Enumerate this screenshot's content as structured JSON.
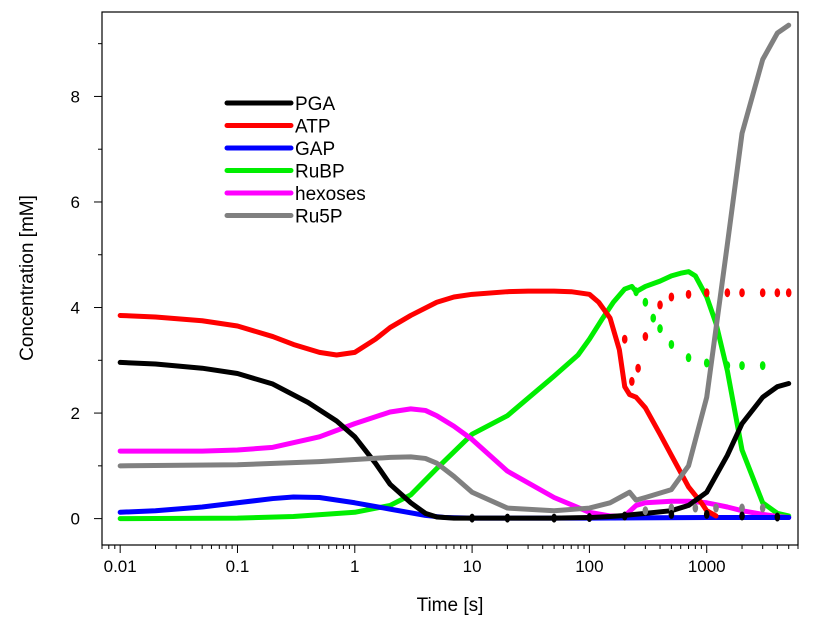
{
  "chart_data": {
    "type": "line",
    "title": "",
    "xlabel": "Time [s]",
    "ylabel": "Concentration [mM]",
    "xscale": "log",
    "xlim": [
      0.007,
      6000
    ],
    "ylim": [
      -0.5,
      9.6
    ],
    "x_ticks": [
      0.01,
      0.1,
      1,
      10,
      100,
      1000
    ],
    "x_tick_labels": [
      "0.01",
      "0.1",
      "1",
      "10",
      "100",
      "1000"
    ],
    "y_ticks": [
      0,
      2,
      4,
      6,
      8
    ],
    "y_tick_labels": [
      "0",
      "2",
      "4",
      "6",
      "8"
    ],
    "grid": false,
    "legend_position": "top-left",
    "series": [
      {
        "name": "PGA",
        "color": "#000000",
        "x": [
          0.01,
          0.02,
          0.05,
          0.1,
          0.2,
          0.4,
          0.7,
          1,
          1.5,
          2,
          3,
          4,
          5,
          7,
          10,
          20,
          50,
          100,
          150,
          200,
          300,
          500,
          700,
          1000,
          1500,
          2000,
          3000,
          4000,
          5000
        ],
        "y": [
          2.96,
          2.93,
          2.85,
          2.75,
          2.55,
          2.2,
          1.85,
          1.55,
          1.05,
          0.65,
          0.3,
          0.1,
          0.03,
          0.01,
          0.01,
          0.01,
          0.01,
          0.02,
          0.04,
          0.06,
          0.1,
          0.15,
          0.25,
          0.5,
          1.2,
          1.8,
          2.3,
          2.5,
          2.56
        ]
      },
      {
        "name": "ATP",
        "color": "#ff0000",
        "x": [
          0.01,
          0.02,
          0.05,
          0.1,
          0.2,
          0.3,
          0.5,
          0.7,
          1,
          1.5,
          2,
          3,
          5,
          7,
          10,
          20,
          30,
          50,
          70,
          100,
          120,
          150,
          180,
          200,
          220,
          250,
          300,
          400,
          500,
          700,
          900,
          1000,
          1200
        ],
        "y": [
          3.85,
          3.82,
          3.75,
          3.65,
          3.45,
          3.3,
          3.15,
          3.1,
          3.15,
          3.4,
          3.62,
          3.85,
          4.1,
          4.2,
          4.25,
          4.3,
          4.31,
          4.31,
          4.3,
          4.25,
          4.1,
          3.8,
          3.2,
          2.5,
          2.35,
          2.3,
          2.1,
          1.6,
          1.2,
          0.6,
          0.3,
          0.15,
          0.05
        ]
      },
      {
        "name": "GAP",
        "color": "#0000ff",
        "x": [
          0.01,
          0.02,
          0.05,
          0.1,
          0.2,
          0.3,
          0.5,
          1,
          2,
          4,
          6,
          10,
          100,
          1000,
          5000
        ],
        "y": [
          0.12,
          0.15,
          0.22,
          0.3,
          0.38,
          0.41,
          0.4,
          0.3,
          0.18,
          0.06,
          0.02,
          0.01,
          0.01,
          0.02,
          0.02
        ]
      },
      {
        "name": "RuBP",
        "color": "#00ee00",
        "x": [
          0.01,
          0.1,
          0.3,
          1,
          2,
          3,
          5,
          10,
          20,
          50,
          80,
          100,
          130,
          160,
          200,
          230,
          250,
          300,
          400,
          500,
          600,
          700,
          800,
          1000,
          1200,
          1500,
          2000,
          3000,
          4000,
          5000
        ],
        "y": [
          0,
          0.01,
          0.04,
          0.12,
          0.25,
          0.45,
          0.95,
          1.6,
          1.95,
          2.7,
          3.1,
          3.4,
          3.8,
          4.1,
          4.35,
          4.4,
          4.3,
          4.4,
          4.5,
          4.6,
          4.65,
          4.68,
          4.6,
          4.2,
          3.7,
          2.8,
          1.3,
          0.3,
          0.1,
          0.05
        ]
      },
      {
        "name": "hexoses",
        "color": "#ff00ff",
        "x": [
          0.01,
          0.05,
          0.1,
          0.2,
          0.5,
          1,
          2,
          3,
          4,
          5,
          7,
          10,
          20,
          50,
          100,
          150,
          200,
          250,
          300,
          500,
          700,
          1000,
          1500,
          2000,
          3000,
          4000,
          5000
        ],
        "y": [
          1.28,
          1.28,
          1.3,
          1.35,
          1.55,
          1.8,
          2.02,
          2.08,
          2.05,
          1.95,
          1.75,
          1.5,
          0.9,
          0.4,
          0.12,
          0.05,
          0.05,
          0.25,
          0.3,
          0.33,
          0.33,
          0.3,
          0.22,
          0.15,
          0.08,
          0.04,
          0.02
        ]
      },
      {
        "name": "Ru5P",
        "color": "#808080",
        "x": [
          0.01,
          0.1,
          0.5,
          1,
          2,
          3,
          4,
          5,
          7,
          10,
          20,
          50,
          100,
          150,
          200,
          220,
          250,
          300,
          500,
          700,
          1000,
          1500,
          2000,
          3000,
          4000,
          5000
        ],
        "y": [
          1.0,
          1.02,
          1.08,
          1.12,
          1.16,
          1.17,
          1.14,
          1.05,
          0.8,
          0.5,
          0.2,
          0.15,
          0.2,
          0.3,
          0.45,
          0.5,
          0.35,
          0.4,
          0.55,
          1.0,
          2.3,
          5.2,
          7.3,
          8.7,
          9.2,
          9.35
        ]
      }
    ],
    "dotted_series": [
      {
        "name": "ATP",
        "color": "#ff0000",
        "x": [
          200,
          230,
          260,
          300,
          400,
          500,
          700,
          1000,
          1500,
          2000,
          3000,
          4000,
          5000
        ],
        "y": [
          3.4,
          2.6,
          2.85,
          3.45,
          4.05,
          4.2,
          4.25,
          4.28,
          4.28,
          4.28,
          4.28,
          4.28,
          4.28
        ]
      },
      {
        "name": "RuBP",
        "color": "#00ee00",
        "x": [
          250,
          300,
          350,
          400,
          500,
          700,
          1000,
          1500,
          2000,
          3000
        ],
        "y": [
          4.3,
          4.1,
          3.8,
          3.6,
          3.3,
          3.05,
          2.95,
          2.9,
          2.9,
          2.9
        ]
      },
      {
        "name": "Ru5P",
        "color": "#808080",
        "x": [
          300,
          500,
          800,
          1200,
          2000,
          3000
        ],
        "y": [
          0.15,
          0.2,
          0.2,
          0.2,
          0.2,
          0.2
        ]
      },
      {
        "name": "PGA",
        "color": "#000000",
        "x": [
          10,
          20,
          50,
          100,
          200,
          500,
          1000,
          2000,
          4000
        ],
        "y": [
          0.01,
          0.01,
          0.01,
          0.02,
          0.05,
          0.08,
          0.08,
          0.05,
          0.03
        ]
      }
    ]
  }
}
